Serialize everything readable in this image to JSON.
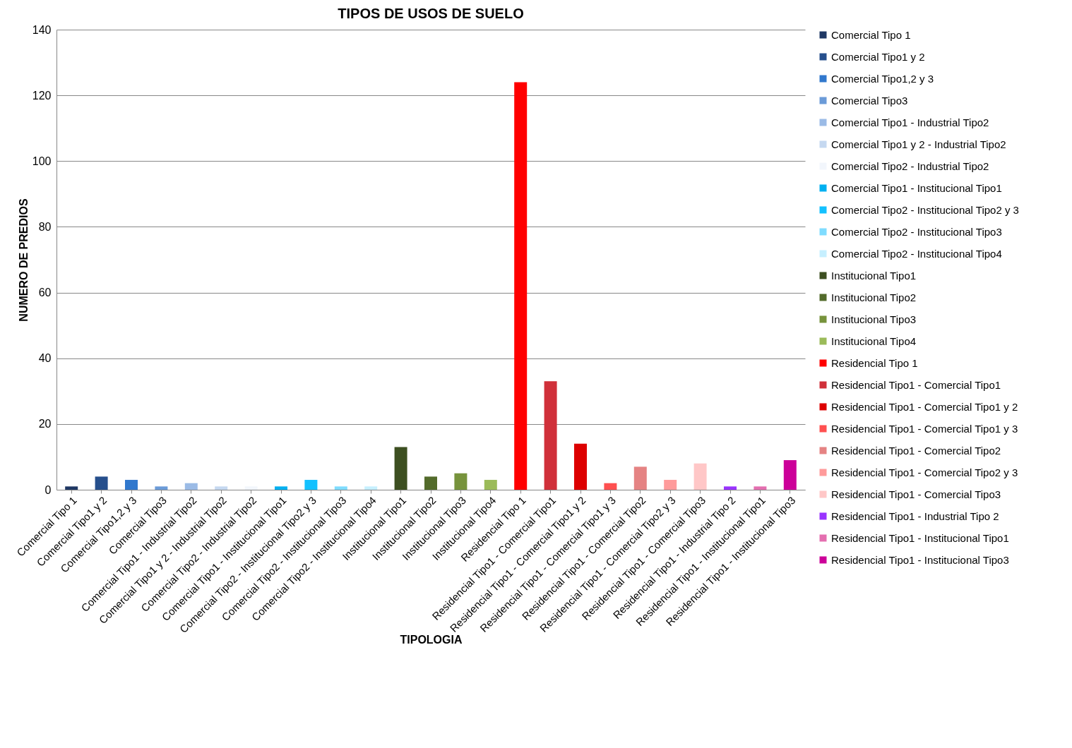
{
  "chart_data": {
    "type": "bar",
    "title": "TIPOS DE USOS DE SUELO",
    "xlabel": "TIPOLOGIA",
    "ylabel": "NUMERO DE PREDIOS",
    "categories": [
      "Comercial Tipo 1",
      "Comercial Tipo1 y 2",
      "Comercial Tipo1,2 y 3",
      "Comercial Tipo3",
      "Comercial Tipo1 - Industrial Tipo2",
      "Comercial Tipo1 y 2 - Industrial Tipo2",
      "Comercial Tipo2 - Industrial Tipo2",
      "Comercial Tipo1 - Institucional Tipo1",
      "Comercial Tipo2 - Institucional Tipo2 y 3",
      "Comercial Tipo2 - Institucional Tipo3",
      "Comercial Tipo2 - Institucional Tipo4",
      "Institucional Tipo1",
      "Institucional Tipo2",
      "Institucional Tipo3",
      "Institucional Tipo4",
      "Residencial Tipo 1",
      "Residencial Tipo1 - Comercial Tipo1",
      "Residencial Tipo1 - Comercial Tipo1 y 2",
      "Residencial Tipo1 - Comercial Tipo1 y 3",
      "Residencial Tipo1 - Comercial Tipo2",
      "Residencial Tipo1 - Comercial Tipo2 y 3",
      "Residencial Tipo1 - Comercial Tipo3",
      "Residencial Tipo1 - Industrial Tipo 2",
      "Residencial Tipo1 - Institucional Tipo1",
      "Residencial Tipo1 - Institucional Tipo3"
    ],
    "series": [
      {
        "name": "Comercial Tipo 1",
        "color": "#1f3864",
        "values": [
          1,
          null,
          null,
          null,
          null,
          null,
          null,
          null,
          null,
          null,
          null,
          null,
          null,
          null,
          null,
          null,
          null,
          null,
          null,
          null,
          null,
          null,
          null,
          null,
          null
        ]
      },
      {
        "name": "Comercial Tipo1 y 2",
        "color": "#264f8c",
        "values": [
          null,
          4,
          null,
          null,
          null,
          null,
          null,
          null,
          null,
          null,
          null,
          null,
          null,
          null,
          null,
          null,
          null,
          null,
          null,
          null,
          null,
          null,
          null,
          null,
          null
        ]
      },
      {
        "name": "Comercial Tipo1,2 y 3",
        "color": "#3178cd",
        "values": [
          null,
          null,
          3,
          null,
          null,
          null,
          null,
          null,
          null,
          null,
          null,
          null,
          null,
          null,
          null,
          null,
          null,
          null,
          null,
          null,
          null,
          null,
          null,
          null,
          null
        ]
      },
      {
        "name": "Comercial Tipo3",
        "color": "#6b9bd8",
        "values": [
          null,
          null,
          null,
          1,
          null,
          null,
          null,
          null,
          null,
          null,
          null,
          null,
          null,
          null,
          null,
          null,
          null,
          null,
          null,
          null,
          null,
          null,
          null,
          null,
          null
        ]
      },
      {
        "name": "Comercial Tipo1 - Industrial Tipo2",
        "color": "#9bbbe6",
        "values": [
          null,
          null,
          null,
          null,
          2,
          null,
          null,
          null,
          null,
          null,
          null,
          null,
          null,
          null,
          null,
          null,
          null,
          null,
          null,
          null,
          null,
          null,
          null,
          null,
          null
        ]
      },
      {
        "name": "Comercial Tipo1 y 2 - Industrial Tipo2",
        "color": "#c5d8f0",
        "values": [
          null,
          null,
          null,
          null,
          null,
          1,
          null,
          null,
          null,
          null,
          null,
          null,
          null,
          null,
          null,
          null,
          null,
          null,
          null,
          null,
          null,
          null,
          null,
          null,
          null
        ]
      },
      {
        "name": "Comercial Tipo2 - Industrial Tipo2",
        "color": "#f2f6fc",
        "values": [
          null,
          null,
          null,
          null,
          null,
          null,
          1,
          null,
          null,
          null,
          null,
          null,
          null,
          null,
          null,
          null,
          null,
          null,
          null,
          null,
          null,
          null,
          null,
          null,
          null
        ]
      },
      {
        "name": "Comercial Tipo1 - Institucional Tipo1",
        "color": "#00b0f0",
        "values": [
          null,
          null,
          null,
          null,
          null,
          null,
          null,
          1,
          null,
          null,
          null,
          null,
          null,
          null,
          null,
          null,
          null,
          null,
          null,
          null,
          null,
          null,
          null,
          null,
          null
        ]
      },
      {
        "name": "Comercial Tipo2 - Institucional Tipo2 y 3",
        "color": "#13c1ff",
        "values": [
          null,
          null,
          null,
          null,
          null,
          null,
          null,
          null,
          3,
          null,
          null,
          null,
          null,
          null,
          null,
          null,
          null,
          null,
          null,
          null,
          null,
          null,
          null,
          null,
          null
        ]
      },
      {
        "name": "Comercial Tipo2 - Institucional Tipo3",
        "color": "#7fdcff",
        "values": [
          null,
          null,
          null,
          null,
          null,
          null,
          null,
          null,
          null,
          1,
          null,
          null,
          null,
          null,
          null,
          null,
          null,
          null,
          null,
          null,
          null,
          null,
          null,
          null,
          null
        ]
      },
      {
        "name": "Comercial Tipo2 - Institucional Tipo4",
        "color": "#c6efff",
        "values": [
          null,
          null,
          null,
          null,
          null,
          null,
          null,
          null,
          null,
          null,
          1,
          null,
          null,
          null,
          null,
          null,
          null,
          null,
          null,
          null,
          null,
          null,
          null,
          null,
          null
        ]
      },
      {
        "name": "Institucional Tipo1",
        "color": "#3d4f21",
        "values": [
          null,
          null,
          null,
          null,
          null,
          null,
          null,
          null,
          null,
          null,
          null,
          13,
          null,
          null,
          null,
          null,
          null,
          null,
          null,
          null,
          null,
          null,
          null,
          null,
          null
        ]
      },
      {
        "name": "Institucional Tipo2",
        "color": "#536b2b",
        "values": [
          null,
          null,
          null,
          null,
          null,
          null,
          null,
          null,
          null,
          null,
          null,
          null,
          4,
          null,
          null,
          null,
          null,
          null,
          null,
          null,
          null,
          null,
          null,
          null,
          null
        ]
      },
      {
        "name": "Institucional Tipo3",
        "color": "#77933c",
        "values": [
          null,
          null,
          null,
          null,
          null,
          null,
          null,
          null,
          null,
          null,
          null,
          null,
          null,
          5,
          null,
          null,
          null,
          null,
          null,
          null,
          null,
          null,
          null,
          null,
          null
        ]
      },
      {
        "name": "Institucional Tipo4",
        "color": "#9bbb59",
        "values": [
          null,
          null,
          null,
          null,
          null,
          null,
          null,
          null,
          null,
          null,
          null,
          null,
          null,
          null,
          3,
          null,
          null,
          null,
          null,
          null,
          null,
          null,
          null,
          null,
          null
        ]
      },
      {
        "name": "Residencial Tipo 1",
        "color": "#ff0000",
        "values": [
          null,
          null,
          null,
          null,
          null,
          null,
          null,
          null,
          null,
          null,
          null,
          null,
          null,
          null,
          null,
          124,
          null,
          null,
          null,
          null,
          null,
          null,
          null,
          null,
          null
        ]
      },
      {
        "name": "Residencial Tipo1 - Comercial Tipo1",
        "color": "#d0303a",
        "values": [
          null,
          null,
          null,
          null,
          null,
          null,
          null,
          null,
          null,
          null,
          null,
          null,
          null,
          null,
          null,
          null,
          33,
          null,
          null,
          null,
          null,
          null,
          null,
          null,
          null
        ]
      },
      {
        "name": "Residencial Tipo1 - Comercial Tipo1 y 2",
        "color": "#dd0000",
        "values": [
          null,
          null,
          null,
          null,
          null,
          null,
          null,
          null,
          null,
          null,
          null,
          null,
          null,
          null,
          null,
          null,
          null,
          14,
          null,
          null,
          null,
          null,
          null,
          null,
          null
        ]
      },
      {
        "name": "Residencial Tipo1 - Comercial Tipo1 y 3",
        "color": "#ff5050",
        "values": [
          null,
          null,
          null,
          null,
          null,
          null,
          null,
          null,
          null,
          null,
          null,
          null,
          null,
          null,
          null,
          null,
          null,
          null,
          2,
          null,
          null,
          null,
          null,
          null,
          null
        ]
      },
      {
        "name": "Residencial Tipo1 - Comercial Tipo2",
        "color": "#e58383",
        "values": [
          null,
          null,
          null,
          null,
          null,
          null,
          null,
          null,
          null,
          null,
          null,
          null,
          null,
          null,
          null,
          null,
          null,
          null,
          null,
          7,
          null,
          null,
          null,
          null,
          null
        ]
      },
      {
        "name": "Residencial Tipo1 - Comercial Tipo2 y 3",
        "color": "#ff9b9b",
        "values": [
          null,
          null,
          null,
          null,
          null,
          null,
          null,
          null,
          null,
          null,
          null,
          null,
          null,
          null,
          null,
          null,
          null,
          null,
          null,
          null,
          3,
          null,
          null,
          null,
          null
        ]
      },
      {
        "name": "Residencial Tipo1 - Comercial Tipo3",
        "color": "#ffc7c7",
        "values": [
          null,
          null,
          null,
          null,
          null,
          null,
          null,
          null,
          null,
          null,
          null,
          null,
          null,
          null,
          null,
          null,
          null,
          null,
          null,
          null,
          null,
          8,
          null,
          null,
          null
        ]
      },
      {
        "name": "Residencial Tipo1 - Industrial Tipo 2",
        "color": "#9933ff",
        "values": [
          null,
          null,
          null,
          null,
          null,
          null,
          null,
          null,
          null,
          null,
          null,
          null,
          null,
          null,
          null,
          null,
          null,
          null,
          null,
          null,
          null,
          null,
          1,
          null,
          null
        ]
      },
      {
        "name": "Residencial Tipo1 - Institucional Tipo1",
        "color": "#e46fb0",
        "values": [
          null,
          null,
          null,
          null,
          null,
          null,
          null,
          null,
          null,
          null,
          null,
          null,
          null,
          null,
          null,
          null,
          null,
          null,
          null,
          null,
          null,
          null,
          null,
          1,
          null
        ]
      },
      {
        "name": "Residencial Tipo1 - Institucional Tipo3",
        "color": "#cc0099",
        "values": [
          null,
          null,
          null,
          null,
          null,
          null,
          null,
          null,
          null,
          null,
          null,
          null,
          null,
          null,
          null,
          null,
          null,
          null,
          null,
          null,
          null,
          null,
          null,
          null,
          9
        ]
      }
    ],
    "ylim": [
      0,
      140
    ],
    "yticks": [
      0,
      20,
      40,
      60,
      80,
      100,
      120,
      140
    ],
    "grid": "y",
    "legend": "right"
  }
}
